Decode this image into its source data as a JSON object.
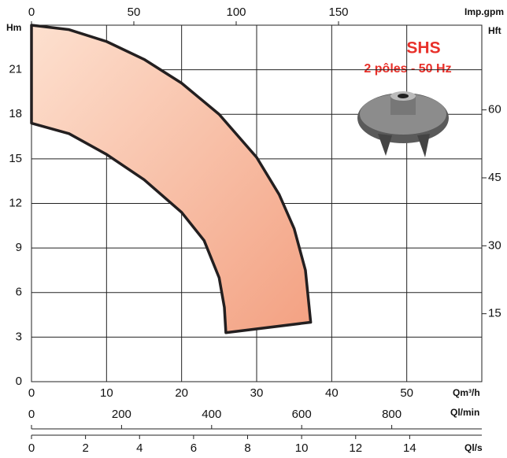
{
  "chart_data": {
    "type": "area-range",
    "title": "SHS",
    "subtitle": "2 pôles - 50 Hz",
    "xlabel": "Qm³/h",
    "ylabel": "Hm",
    "y2label": "Hft",
    "x2label": "Imp.gpm",
    "x3label": "Ql/min",
    "x4label": "Ql/s",
    "xlim": [
      0,
      60
    ],
    "xticks": [
      0,
      10,
      20,
      30,
      40,
      50
    ],
    "ylim": [
      0,
      24
    ],
    "yticks": [
      0,
      3,
      6,
      9,
      12,
      15,
      18,
      21
    ],
    "y2lim": [
      0,
      78.7
    ],
    "y2ticks": [
      15,
      30,
      45,
      60
    ],
    "x2lim": [
      0,
      220
    ],
    "x2ticks": [
      0,
      50,
      100,
      150
    ],
    "x3lim": [
      0,
      1000
    ],
    "x3ticks": [
      0,
      200,
      400,
      600,
      800
    ],
    "x4lim": [
      0,
      16.67
    ],
    "x4ticks": [
      0,
      2,
      4,
      6,
      8,
      10,
      12,
      14
    ],
    "grid": true,
    "fill_color": "#f6b496",
    "line_color": "#231f20",
    "series": [
      {
        "x": [
          0,
          5,
          10,
          15,
          20,
          25,
          30,
          33,
          35,
          36.5,
          37.2
        ],
        "values": [
          24,
          23.7,
          22.9,
          21.7,
          20.1,
          18,
          15.1,
          12.6,
          10.3,
          7.5,
          4.0
        ]
      },
      {
        "x": [
          0,
          5,
          10,
          15,
          20,
          23,
          25,
          25.7,
          25.9
        ],
        "values": [
          17.4,
          16.7,
          15.3,
          13.6,
          11.4,
          9.5,
          7.0,
          5.0,
          3.3
        ]
      }
    ]
  }
}
